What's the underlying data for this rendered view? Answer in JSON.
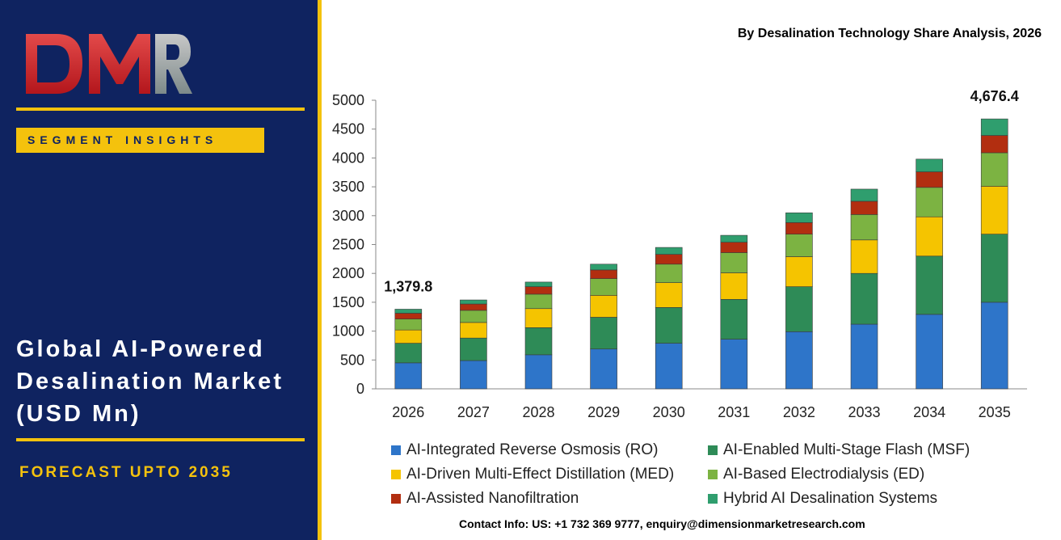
{
  "logo": {
    "text": "DMR"
  },
  "segment_badge": "SEGMENT INSIGHTS",
  "market_title": [
    "Global AI-Powered",
    "Desalination Market",
    "(USD Mn)"
  ],
  "forecast_label": "FORECAST UPTO 2035",
  "contact": "Contact Info: US: +1 732 369 9777, enquiry@dimensionmarketresearch.com",
  "colors": {
    "panel": "#0f2360",
    "accent": "#f4c20d"
  },
  "chart_data": {
    "type": "bar",
    "stacked": true,
    "title": "By Desalination Technology Share Analysis, 2026",
    "categories": [
      "2026",
      "2027",
      "2028",
      "2029",
      "2030",
      "2031",
      "2032",
      "2033",
      "2034",
      "2035"
    ],
    "ylim": [
      0,
      5000
    ],
    "yticks": [
      0,
      500,
      1000,
      1500,
      2000,
      2500,
      3000,
      3500,
      4000,
      4500,
      5000
    ],
    "grid": false,
    "legend_position": "bottom",
    "series": [
      {
        "name": "AI-Integrated Reverse Osmosis (RO)",
        "color": "#2e75c9",
        "values": [
          450,
          490,
          590,
          690,
          790,
          860,
          990,
          1120,
          1290,
          1500
        ]
      },
      {
        "name": "AI-Enabled Multi-Stage Flash (MSF)",
        "color": "#2e8b57",
        "values": [
          340,
          390,
          470,
          550,
          620,
          690,
          780,
          880,
          1010,
          1180
        ]
      },
      {
        "name": "AI-Driven Multi-Effect Distillation (MED)",
        "color": "#f5c400",
        "values": [
          230,
          270,
          330,
          380,
          430,
          460,
          520,
          580,
          680,
          830
        ]
      },
      {
        "name": "AI-Based Electrodialysis (ED)",
        "color": "#7cb342",
        "values": [
          190,
          210,
          250,
          290,
          320,
          350,
          390,
          440,
          510,
          580
        ]
      },
      {
        "name": "AI-Assisted Nanofiltration",
        "color": "#b22e10",
        "values": [
          100,
          110,
          130,
          150,
          170,
          180,
          200,
          230,
          270,
          300
        ]
      },
      {
        "name": "Hybrid AI Desalination Systems",
        "color": "#2f9e6e",
        "values": [
          69.8,
          70,
          80,
          100,
          120,
          120,
          170,
          210,
          220,
          286.4
        ]
      }
    ],
    "annotations": [
      {
        "category": "2026",
        "label": "1,379.8"
      },
      {
        "category": "2035",
        "label": "4,676.4"
      }
    ]
  }
}
